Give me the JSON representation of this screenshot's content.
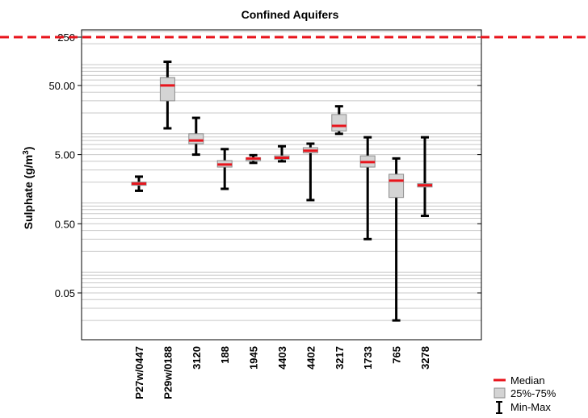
{
  "chart_data": {
    "type": "box",
    "title": "Confined Aquifers",
    "ylabel": "Sulphate (g/m",
    "ylabel_sup": "3",
    "ylabel_close": ")",
    "yscale": "log",
    "ylim": [
      0.01,
      300
    ],
    "yticks": [
      {
        "value": 250,
        "label": "250"
      },
      {
        "value": 50,
        "label": "50.00"
      },
      {
        "value": 5,
        "label": "5.00"
      },
      {
        "value": 0.5,
        "label": "0.50"
      },
      {
        "value": 0.05,
        "label": "0.05"
      }
    ],
    "reference_line": {
      "value": 250,
      "color": "#e8141c",
      "style": "dashed"
    },
    "grid": true,
    "categories": [
      "P27w/0447",
      "P29w/0188",
      "3120",
      "188",
      "1945",
      "4403",
      "4402",
      "3217",
      "1733",
      "765",
      "3278"
    ],
    "boxes": [
      {
        "min": 1.5,
        "q1": 1.8,
        "median": 1.9,
        "q3": 2.0,
        "max": 2.4
      },
      {
        "min": 12,
        "q1": 30,
        "median": 50,
        "q3": 65,
        "max": 110
      },
      {
        "min": 5.0,
        "q1": 7.2,
        "median": 8.0,
        "q3": 10.0,
        "max": 17
      },
      {
        "min": 1.6,
        "q1": 3.3,
        "median": 3.6,
        "q3": 4.1,
        "max": 6.0
      },
      {
        "min": 3.8,
        "q1": 4.1,
        "median": 4.4,
        "q3": 4.5,
        "max": 4.9
      },
      {
        "min": 4.0,
        "q1": 4.3,
        "median": 4.5,
        "q3": 4.8,
        "max": 6.6
      },
      {
        "min": 1.1,
        "q1": 5.3,
        "median": 5.7,
        "q3": 6.3,
        "max": 7.2
      },
      {
        "min": 10,
        "q1": 11,
        "median": 13,
        "q3": 19,
        "max": 25
      },
      {
        "min": 0.3,
        "q1": 3.3,
        "median": 3.9,
        "q3": 4.8,
        "max": 8.9
      },
      {
        "min": 0.02,
        "q1": 1.2,
        "median": 2.1,
        "q3": 2.6,
        "max": 4.4
      },
      {
        "min": 0.65,
        "q1": 1.7,
        "median": 1.8,
        "q3": 1.9,
        "max": 8.9
      }
    ],
    "legend": {
      "position": "bottom-right",
      "items": [
        "Median",
        "25%-75%",
        "Min-Max"
      ]
    },
    "colors": {
      "median": "#e8141c",
      "box_fill": "#d4d4d4",
      "box_stroke": "#8c8c8c",
      "whisker": "#000000",
      "grid": "#c8c8c8"
    }
  }
}
